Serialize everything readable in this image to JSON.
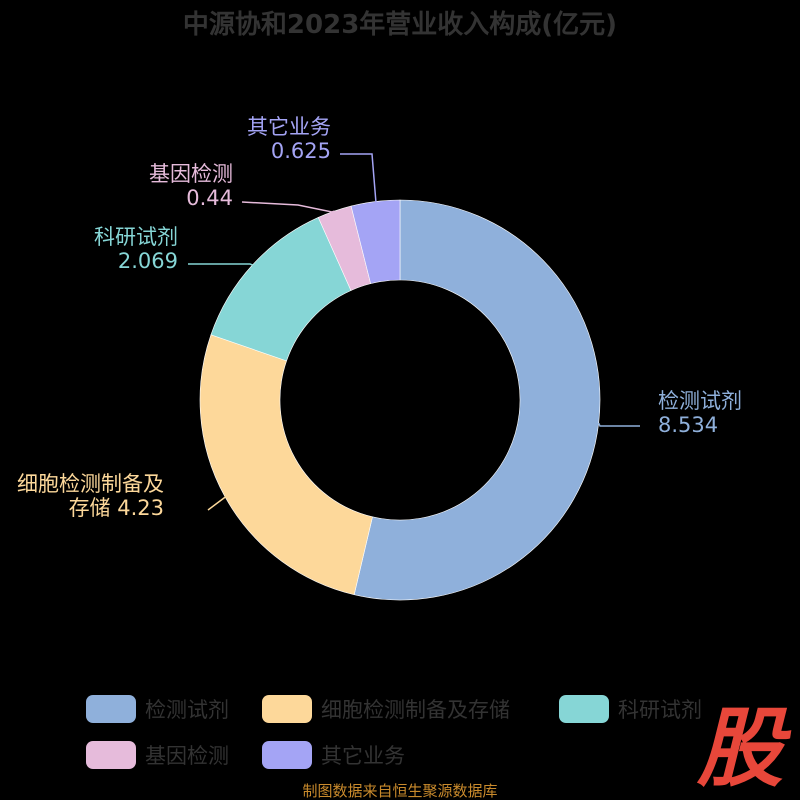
{
  "chart_data": {
    "type": "pie",
    "style": "donut",
    "title": "中源协和2023年营业收入构成(亿元)",
    "slices": [
      {
        "name": "检测试剂",
        "label_lines": [
          "检测试剂",
          "8.534"
        ],
        "value": 8.534,
        "color": "#8fb0db"
      },
      {
        "name": "细胞检测制备及存储",
        "label_lines": [
          "细胞检测制备及",
          "存储 4.23"
        ],
        "value": 4.23,
        "color": "#fdd89a"
      },
      {
        "name": "科研试剂",
        "label_lines": [
          "科研试剂",
          "2.069"
        ],
        "value": 2.069,
        "color": "#86d6d6"
      },
      {
        "name": "基因检测",
        "label_lines": [
          "基因检测",
          "0.44"
        ],
        "value": 0.44,
        "color": "#e6bbdb"
      },
      {
        "name": "其它业务",
        "label_lines": [
          "其它业务",
          "0.625"
        ],
        "value": 0.625,
        "color": "#a4a4f5"
      }
    ],
    "legend": {
      "position": "bottom",
      "items": [
        "检测试剂",
        "细胞检测制备及存储",
        "科研试剂",
        "基因检测",
        "其它业务"
      ]
    }
  },
  "footer": {
    "source": "制图数据来自恒生聚源数据库"
  },
  "logo": {
    "text": "股",
    "color": "#e8473a"
  }
}
